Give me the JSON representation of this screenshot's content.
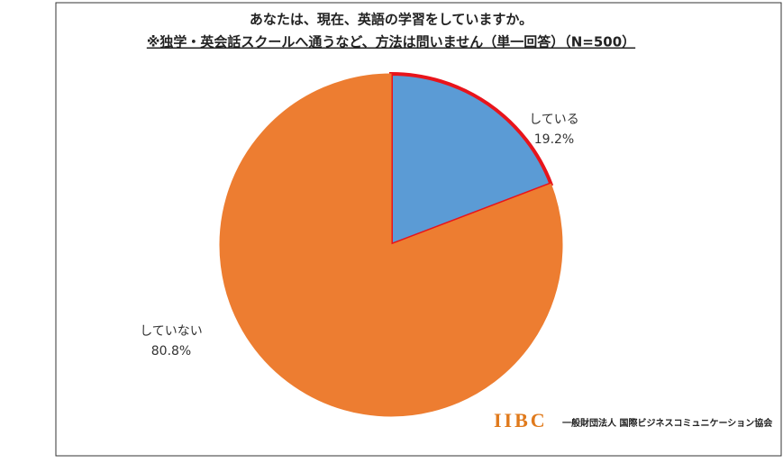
{
  "chart_data": {
    "type": "pie",
    "title": "あなたは、現在、英語の学習をしていますか。",
    "subtitle": "※独学・英会話スクールへ通うなど、方法は問いません（単一回答）（N=500）",
    "categories": [
      "している",
      "していない"
    ],
    "values": [
      19.2,
      80.8
    ],
    "value_labels": [
      "19.2%",
      "80.8%"
    ],
    "colors": [
      "#5b9bd5",
      "#ed7d31"
    ],
    "edge_colors": [
      "#e8141b",
      null
    ],
    "logo": "IIBC",
    "organization": "一般財団法人 国際ビジネスコミュニケーション協会"
  }
}
